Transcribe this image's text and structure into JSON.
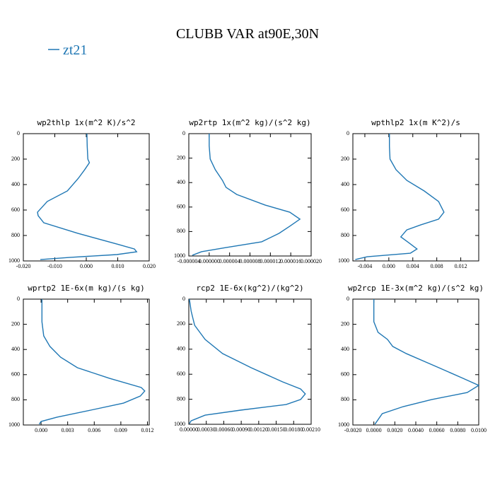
{
  "title": "CLUBB VAR at90E,30N",
  "chart_data": [
    {
      "type": "line",
      "title": "wp2thlp  1x(m^2 K)/s^2",
      "xlim": [
        -0.02,
        0.02
      ],
      "xticks": [
        {
          "value": -0.02,
          "label": "-0.020"
        },
        {
          "value": -0.01,
          "label": "-0.010"
        },
        {
          "value": 0,
          "label": "0.000"
        },
        {
          "value": 0.01,
          "label": "0.010"
        },
        {
          "value": 0.02,
          "label": "0.020"
        }
      ],
      "ylim": [
        1000,
        0
      ],
      "yticks": [
        0,
        200,
        400,
        600,
        800,
        1000
      ],
      "series": [
        {
          "name": "zt21",
          "color": "#1f77b4",
          "x": [
            0.0002,
            0.0003,
            0.0005,
            0.001,
            -0.0005,
            -0.0025,
            -0.006,
            -0.0124,
            -0.0155,
            -0.0153,
            -0.0135,
            -0.0027,
            0.0097,
            0.0153,
            0.016,
            0.0097,
            -0.005,
            -0.0146
          ],
          "y": [
            0,
            100,
            200,
            228,
            283,
            350,
            450,
            533,
            617,
            644,
            700,
            783,
            867,
            906,
            928,
            950,
            972,
            989
          ]
        }
      ]
    },
    {
      "type": "line",
      "title": "wp2rtp  1x(m^2 kg)/(s^2 kg)",
      "xlim": [
        -4e-06,
        2e-05
      ],
      "xticks": [
        {
          "value": -4e-06,
          "label": "-0.000004"
        },
        {
          "value": 0,
          "label": "0.000000"
        },
        {
          "value": 4e-06,
          "label": "0.000004"
        },
        {
          "value": 8e-06,
          "label": "0.000008"
        },
        {
          "value": 1.2e-05,
          "label": "0.000012"
        },
        {
          "value": 1.6e-05,
          "label": "0.000016"
        },
        {
          "value": 2e-05,
          "label": "0.000020"
        }
      ],
      "ylim": [
        1000,
        0
      ],
      "yticks": [
        0,
        200,
        400,
        600,
        800,
        1000
      ],
      "series": [
        {
          "name": "zt21",
          "color": "#1f77b4",
          "x": [
            0,
            0,
            2e-07,
            1.2e-06,
            2.6e-06,
            3.3e-06,
            5.4e-06,
            1.1e-05,
            1.58e-05,
            1.78e-05,
            1.58e-05,
            1.37e-05,
            1.03e-05,
            3.3e-06,
            -1.5e-06,
            -3.3e-06
          ],
          "y": [
            0,
            100,
            208,
            295,
            382,
            439,
            497,
            584,
            642,
            699,
            757,
            815,
            884,
            931,
            965,
            994
          ]
        }
      ]
    },
    {
      "type": "line",
      "title": "wpthlp2  1x(m K^2)/s",
      "xlim": [
        -0.006,
        0.015
      ],
      "xticks": [
        {
          "value": -0.004,
          "label": "-0.004"
        },
        {
          "value": 0,
          "label": "0.000"
        },
        {
          "value": 0.004,
          "label": "0.004"
        },
        {
          "value": 0.008,
          "label": "0.008"
        },
        {
          "value": 0.012,
          "label": "0.012"
        }
      ],
      "ylim": [
        1000,
        0
      ],
      "yticks": [
        0,
        200,
        400,
        600,
        800,
        1000
      ],
      "series": [
        {
          "name": "zt21",
          "color": "#1f77b4",
          "x": [
            0.0001,
            0.0001,
            0.0002,
            0.0012,
            0.003,
            0.0059,
            0.0083,
            0.0092,
            0.0083,
            0.0053,
            0.003,
            0.002,
            0.0033,
            0.0047,
            0.0036,
            -0.0036,
            -0.0056
          ],
          "y": [
            0,
            100,
            200,
            283,
            367,
            450,
            533,
            617,
            672,
            717,
            756,
            811,
            856,
            906,
            939,
            967,
            989
          ]
        }
      ]
    },
    {
      "type": "line",
      "title": "wprtp2  1E-6x(m kg)/(s kg)",
      "xlim": [
        -0.002,
        0.0122
      ],
      "xticks": [
        {
          "value": 0,
          "label": "0.000"
        },
        {
          "value": 0.003,
          "label": "0.003"
        },
        {
          "value": 0.006,
          "label": "0.006"
        },
        {
          "value": 0.009,
          "label": "0.009"
        },
        {
          "value": 0.012,
          "label": "0.012"
        }
      ],
      "ylim": [
        1000,
        0
      ],
      "yticks": [
        0,
        200,
        400,
        600,
        800,
        1000
      ],
      "series": [
        {
          "name": "zt21",
          "color": "#1f77b4",
          "x": [
            0.0001,
            0.0001,
            0.0003,
            0.001,
            0.0022,
            0.0041,
            0.0077,
            0.0113,
            0.0117,
            0.0112,
            0.0093,
            0.0056,
            0.0018,
            0,
            -0.0002
          ],
          "y": [
            0,
            180,
            292,
            376,
            461,
            545,
            629,
            702,
            730,
            770,
            826,
            882,
            938,
            972,
            994
          ]
        }
      ]
    },
    {
      "type": "line",
      "title": "rcp2  1E-6x(kg^2)/(kg^2)",
      "xlim": [
        0,
        0.0021
      ],
      "xticks": [
        {
          "value": 0,
          "label": "0.00000"
        },
        {
          "value": 0.0003,
          "label": "0.00030"
        },
        {
          "value": 0.0006,
          "label": "0.00060"
        },
        {
          "value": 0.0009,
          "label": "0.00090"
        },
        {
          "value": 0.0012,
          "label": "0.00120"
        },
        {
          "value": 0.0015,
          "label": "0.00150"
        },
        {
          "value": 0.0018,
          "label": "0.00180"
        },
        {
          "value": 0.0021,
          "label": "0.00210"
        }
      ],
      "ylim": [
        1000,
        0
      ],
      "yticks": [
        0,
        200,
        400,
        600,
        800,
        1000
      ],
      "series": [
        {
          "name": "zt21",
          "color": "#1f77b4",
          "x": [
            1e-05,
            4e-05,
            0.0001,
            0.00028,
            0.00058,
            0.00107,
            0.00161,
            0.00192,
            0.002,
            0.00192,
            0.00167,
            0.00089,
            0.00028,
            4e-05,
            1e-05
          ],
          "y": [
            0,
            96,
            209,
            322,
            435,
            548,
            661,
            718,
            757,
            802,
            842,
            887,
            927,
            972,
            994
          ]
        }
      ]
    },
    {
      "type": "line",
      "title": "wp2rcp  1E-3x(m^2 kg)/(s^2 kg)",
      "xlim": [
        -0.002,
        0.01
      ],
      "xticks": [
        {
          "value": -0.002,
          "label": "-0.0020"
        },
        {
          "value": 0,
          "label": "0.0000"
        },
        {
          "value": 0.002,
          "label": "0.0020"
        },
        {
          "value": 0.004,
          "label": "0.0040"
        },
        {
          "value": 0.006,
          "label": "0.0060"
        },
        {
          "value": 0.008,
          "label": "0.0080"
        },
        {
          "value": 0.01,
          "label": "0.0100"
        }
      ],
      "ylim": [
        1000,
        0
      ],
      "yticks": [
        0,
        200,
        400,
        600,
        800,
        1000
      ],
      "series": [
        {
          "name": "zt21",
          "color": "#1f77b4",
          "x": [
            0,
            0,
            0.0004,
            0.0013,
            0.0018,
            0.0031,
            0.0062,
            0.0085,
            0.01,
            0.0089,
            0.0055,
            0.0028,
            0.0008,
            0.0001
          ],
          "y": [
            0,
            180,
            264,
            320,
            376,
            433,
            545,
            629,
            685,
            742,
            798,
            854,
            910,
            994
          ]
        }
      ]
    }
  ]
}
